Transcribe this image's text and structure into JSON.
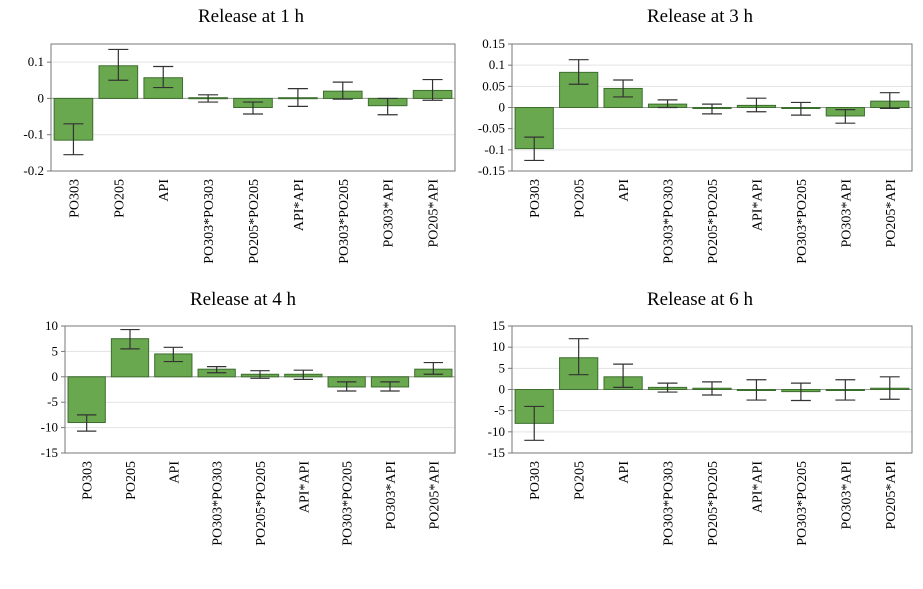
{
  "chart_data": [
    {
      "type": "bar",
      "title": "Release at 1 h",
      "categories": [
        "PO303",
        "PO205",
        "API",
        "PO303*PO303",
        "PO205*PO205",
        "API*API",
        "PO303*PO205",
        "PO303*API",
        "PO205*API"
      ],
      "values": [
        -0.115,
        0.09,
        0.057,
        0.002,
        -0.025,
        0.002,
        0.02,
        -0.02,
        0.022
      ],
      "error_low": [
        -0.155,
        0.05,
        0.03,
        -0.01,
        -0.043,
        -0.022,
        -0.002,
        -0.045,
        -0.005
      ],
      "error_high": [
        -0.07,
        0.135,
        0.088,
        0.01,
        -0.01,
        0.027,
        0.045,
        0.0,
        0.052
      ],
      "yticks": [
        "0.1",
        "0",
        "-0.1",
        "-0.2"
      ],
      "ylim": [
        -0.2,
        0.15
      ],
      "grid": true
    },
    {
      "type": "bar",
      "title": "Release at 3 h",
      "categories": [
        "PO303",
        "PO205",
        "API",
        "PO303*PO303",
        "PO205*PO205",
        "API*API",
        "PO303*PO205",
        "PO303*API",
        "PO205*API"
      ],
      "values": [
        -0.097,
        0.083,
        0.045,
        0.008,
        -0.002,
        0.005,
        -0.002,
        -0.02,
        0.015
      ],
      "error_low": [
        -0.125,
        0.055,
        0.025,
        0.0,
        -0.015,
        -0.01,
        -0.018,
        -0.037,
        -0.002
      ],
      "error_high": [
        -0.07,
        0.113,
        0.065,
        0.018,
        0.008,
        0.022,
        0.012,
        -0.005,
        0.035
      ],
      "yticks": [
        "0.15",
        "0.1",
        "0.05",
        "0",
        "-0.05",
        "-0.1",
        "-0.15"
      ],
      "ylim": [
        -0.15,
        0.15
      ],
      "grid": true
    },
    {
      "type": "bar",
      "title": "Release at 4 h",
      "categories": [
        "PO303",
        "PO205",
        "API",
        "PO303*PO303",
        "PO205*PO205",
        "API*API",
        "PO303*PO205",
        "PO303*API",
        "PO205*API"
      ],
      "values": [
        -9.0,
        7.5,
        4.5,
        1.5,
        0.5,
        0.5,
        -2.0,
        -2.0,
        1.5
      ],
      "error_low": [
        -10.7,
        5.5,
        3.0,
        0.8,
        -0.3,
        -0.5,
        -2.8,
        -2.8,
        0.5
      ],
      "error_high": [
        -7.5,
        9.3,
        5.8,
        2.0,
        1.2,
        1.3,
        -1.0,
        -1.0,
        2.8
      ],
      "yticks": [
        "10",
        "5",
        "0",
        "-5",
        "-10",
        "-15"
      ],
      "ylim": [
        -15,
        10
      ],
      "grid": true
    },
    {
      "type": "bar",
      "title": "Release at 6 h",
      "categories": [
        "PO303",
        "PO205",
        "API",
        "PO303*PO303",
        "PO205*PO205",
        "API*API",
        "PO303*PO205",
        "PO303*API",
        "PO205*API"
      ],
      "values": [
        -8.0,
        7.5,
        3.0,
        0.5,
        0.3,
        0.0,
        -0.5,
        0.0,
        0.3
      ],
      "error_low": [
        -12.0,
        3.5,
        0.5,
        -0.6,
        -1.3,
        -2.5,
        -2.6,
        -2.5,
        -2.3
      ],
      "error_high": [
        -4.0,
        12.0,
        6.0,
        1.5,
        1.8,
        2.3,
        1.5,
        2.3,
        3.0
      ],
      "yticks": [
        "15",
        "10",
        "5",
        "0",
        "-5",
        "-10",
        "-15"
      ],
      "ylim": [
        -15,
        15
      ],
      "grid": true
    }
  ],
  "colors": {
    "bar_fill": "#6aa84f",
    "bar_stroke": "#3c6e2e",
    "errorbar": "#333333",
    "grid": "#e3e3e3",
    "frame": "#777777"
  }
}
